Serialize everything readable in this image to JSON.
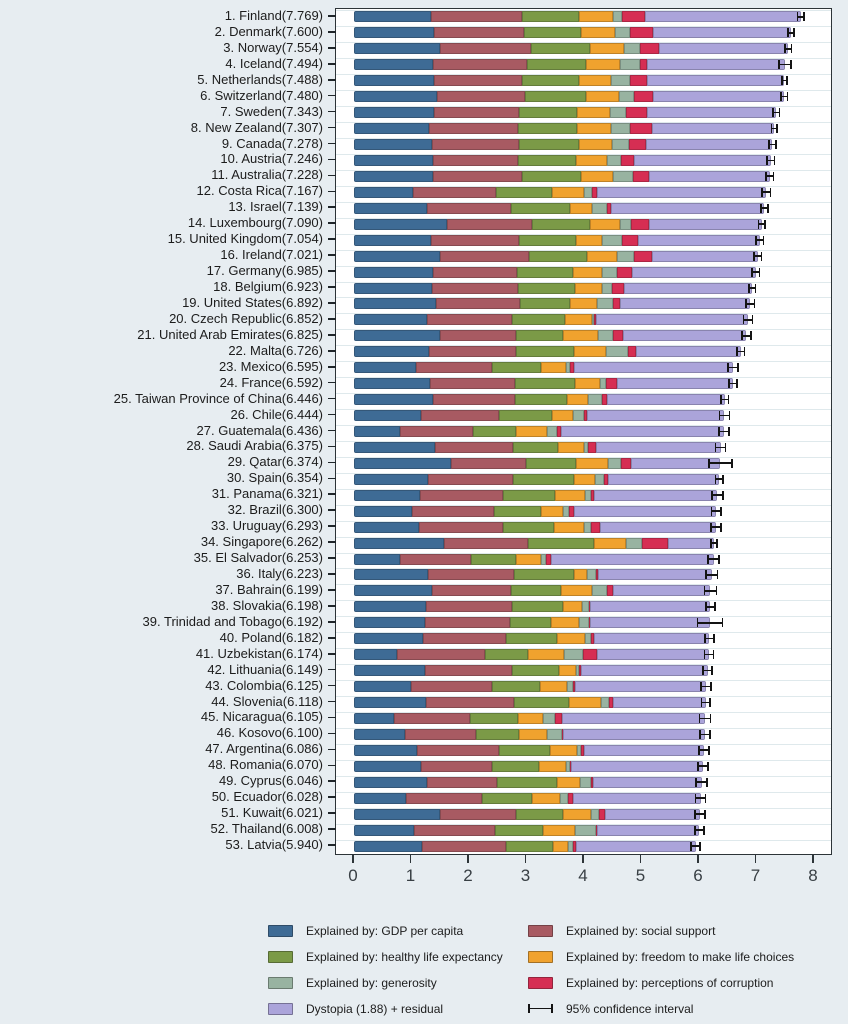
{
  "chart_data": {
    "type": "bar",
    "orientation": "horizontal",
    "stacked": true,
    "title": "",
    "xlabel": "",
    "ylabel": "",
    "x_ticks": [
      "0",
      "1",
      "2",
      "3",
      "4",
      "5",
      "6",
      "7",
      "8"
    ],
    "xlim": [
      0,
      8.3
    ],
    "grid": true,
    "legend_position": "bottom",
    "label_format": "{rank}. {name}({score})",
    "component_keys": [
      "gdp",
      "social",
      "health",
      "freedom",
      "generosity",
      "corruption"
    ],
    "colors": {
      "gdp": "#3e6b95",
      "social": "#a85a62",
      "health": "#7b9a47",
      "freedom": "#f0a22e",
      "generosity": "#98b3a1",
      "corruption": "#d62e53",
      "dystopia": "#aba4da",
      "ci": "#141414",
      "page_bg": "#e7edf1",
      "plot_bg": "#ffffff",
      "gridline": "#dfe9ec",
      "axis": "#2d3438"
    },
    "legend": [
      {
        "key": "gdp",
        "label": "Explained by: GDP per capita"
      },
      {
        "key": "social",
        "label": "Explained by: social support"
      },
      {
        "key": "health",
        "label": "Explained by: healthy life expectancy"
      },
      {
        "key": "freedom",
        "label": "Explained by: freedom to make life choices"
      },
      {
        "key": "generosity",
        "label": "Explained by: generosity"
      },
      {
        "key": "corruption",
        "label": "Explained by: perceptions of corruption"
      },
      {
        "key": "dystopia",
        "label": "Dystopia (1.88) + residual"
      },
      {
        "key": "ci",
        "label": "95% confidence interval"
      }
    ],
    "countries": [
      {
        "rank": 1,
        "name": "Finland",
        "score": "7.769",
        "components": [
          1.34,
          1.587,
          0.986,
          0.596,
          0.153,
          0.393
        ],
        "ci": 0.07
      },
      {
        "rank": 2,
        "name": "Denmark",
        "score": "7.600",
        "components": [
          1.383,
          1.573,
          0.996,
          0.592,
          0.252,
          0.41
        ],
        "ci": 0.07
      },
      {
        "rank": 3,
        "name": "Norway",
        "score": "7.554",
        "components": [
          1.488,
          1.582,
          1.028,
          0.603,
          0.271,
          0.341
        ],
        "ci": 0.07
      },
      {
        "rank": 4,
        "name": "Iceland",
        "score": "7.494",
        "components": [
          1.38,
          1.624,
          1.026,
          0.591,
          0.354,
          0.118
        ],
        "ci": 0.12
      },
      {
        "rank": 5,
        "name": "Netherlands",
        "score": "7.488",
        "components": [
          1.396,
          1.522,
          0.999,
          0.557,
          0.322,
          0.298
        ],
        "ci": 0.06
      },
      {
        "rank": 6,
        "name": "Switzerland",
        "score": "7.480",
        "components": [
          1.452,
          1.526,
          1.052,
          0.572,
          0.263,
          0.343
        ],
        "ci": 0.07
      },
      {
        "rank": 7,
        "name": "Sweden",
        "score": "7.343",
        "components": [
          1.387,
          1.487,
          1.009,
          0.574,
          0.267,
          0.373
        ],
        "ci": 0.07
      },
      {
        "rank": 8,
        "name": "New Zealand",
        "score": "7.307",
        "components": [
          1.303,
          1.557,
          1.026,
          0.585,
          0.33,
          0.38
        ],
        "ci": 0.06
      },
      {
        "rank": 9,
        "name": "Canada",
        "score": "7.278",
        "components": [
          1.365,
          1.505,
          1.039,
          0.584,
          0.285,
          0.308
        ],
        "ci": 0.07
      },
      {
        "rank": 10,
        "name": "Austria",
        "score": "7.246",
        "components": [
          1.376,
          1.475,
          1.016,
          0.532,
          0.244,
          0.226
        ],
        "ci": 0.08
      },
      {
        "rank": 11,
        "name": "Australia",
        "score": "7.228",
        "components": [
          1.372,
          1.548,
          1.036,
          0.557,
          0.332,
          0.29
        ],
        "ci": 0.08
      },
      {
        "rank": 12,
        "name": "Costa Rica",
        "score": "7.167",
        "components": [
          1.034,
          1.441,
          0.963,
          0.558,
          0.144,
          0.093
        ],
        "ci": 0.09
      },
      {
        "rank": 13,
        "name": "Israel",
        "score": "7.139",
        "components": [
          1.276,
          1.455,
          1.029,
          0.371,
          0.261,
          0.082
        ],
        "ci": 0.07
      },
      {
        "rank": 14,
        "name": "Luxembourg",
        "score": "7.090",
        "components": [
          1.609,
          1.479,
          1.012,
          0.526,
          0.194,
          0.316
        ],
        "ci": 0.07
      },
      {
        "rank": 15,
        "name": "United Kingdom",
        "score": "7.054",
        "components": [
          1.333,
          1.538,
          0.996,
          0.45,
          0.348,
          0.278
        ],
        "ci": 0.08
      },
      {
        "rank": 16,
        "name": "Ireland",
        "score": "7.021",
        "components": [
          1.499,
          1.553,
          0.999,
          0.516,
          0.298,
          0.31
        ],
        "ci": 0.08
      },
      {
        "rank": 17,
        "name": "Germany",
        "score": "6.985",
        "components": [
          1.373,
          1.454,
          0.987,
          0.495,
          0.261,
          0.265
        ],
        "ci": 0.08
      },
      {
        "rank": 18,
        "name": "Belgium",
        "score": "6.923",
        "components": [
          1.356,
          1.504,
          0.986,
          0.473,
          0.16,
          0.21
        ],
        "ci": 0.07
      },
      {
        "rank": 19,
        "name": "United States",
        "score": "6.892",
        "components": [
          1.433,
          1.457,
          0.874,
          0.454,
          0.28,
          0.128
        ],
        "ci": 0.09
      },
      {
        "rank": 20,
        "name": "Czech Republic",
        "score": "6.852",
        "components": [
          1.269,
          1.487,
          0.92,
          0.457,
          0.046,
          0.036
        ],
        "ci": 0.09
      },
      {
        "rank": 21,
        "name": "United Arab Emirates",
        "score": "6.825",
        "components": [
          1.503,
          1.31,
          0.825,
          0.598,
          0.262,
          0.182
        ],
        "ci": 0.09
      },
      {
        "rank": 22,
        "name": "Malta",
        "score": "6.726",
        "components": [
          1.3,
          1.52,
          0.999,
          0.564,
          0.375,
          0.151
        ],
        "ci": 0.08
      },
      {
        "rank": 23,
        "name": "Mexico",
        "score": "6.595",
        "components": [
          1.07,
          1.323,
          0.861,
          0.433,
          0.074,
          0.073
        ],
        "ci": 0.1
      },
      {
        "rank": 24,
        "name": "France",
        "score": "6.592",
        "components": [
          1.324,
          1.472,
          1.045,
          0.436,
          0.111,
          0.183
        ],
        "ci": 0.08
      },
      {
        "rank": 25,
        "name": "Taiwan Province of China",
        "score": "6.446",
        "components": [
          1.368,
          1.43,
          0.914,
          0.351,
          0.242,
          0.097
        ],
        "ci": 0.08
      },
      {
        "rank": 26,
        "name": "Chile",
        "score": "6.444",
        "components": [
          1.159,
          1.369,
          0.92,
          0.357,
          0.187,
          0.056
        ],
        "ci": 0.1
      },
      {
        "rank": 27,
        "name": "Guatemala",
        "score": "6.436",
        "components": [
          0.8,
          1.269,
          0.746,
          0.535,
          0.175,
          0.078
        ],
        "ci": 0.1
      },
      {
        "rank": 28,
        "name": "Saudi Arabia",
        "score": "6.375",
        "components": [
          1.403,
          1.357,
          0.795,
          0.439,
          0.08,
          0.132
        ],
        "ci": 0.1
      },
      {
        "rank": 29,
        "name": "Qatar",
        "score": "6.374",
        "components": [
          1.684,
          1.313,
          0.871,
          0.555,
          0.22,
          0.167
        ],
        "ci": 0.21
      },
      {
        "rank": 30,
        "name": "Spain",
        "score": "6.354",
        "components": [
          1.286,
          1.484,
          1.062,
          0.362,
          0.153,
          0.079
        ],
        "ci": 0.08
      },
      {
        "rank": 31,
        "name": "Panama",
        "score": "6.321",
        "components": [
          1.149,
          1.442,
          0.91,
          0.516,
          0.109,
          0.054
        ],
        "ci": 0.11
      },
      {
        "rank": 32,
        "name": "Brazil",
        "score": "6.300",
        "components": [
          1.004,
          1.439,
          0.802,
          0.39,
          0.099,
          0.086
        ],
        "ci": 0.1
      },
      {
        "rank": 33,
        "name": "Uruguay",
        "score": "6.293",
        "components": [
          1.124,
          1.465,
          0.891,
          0.523,
          0.127,
          0.15
        ],
        "ci": 0.1
      },
      {
        "rank": 34,
        "name": "Singapore",
        "score": "6.262",
        "components": [
          1.572,
          1.463,
          1.141,
          0.556,
          0.271,
          0.453
        ],
        "ci": 0.07
      },
      {
        "rank": 35,
        "name": "El Salvador",
        "score": "6.253",
        "components": [
          0.794,
          1.242,
          0.789,
          0.43,
          0.093,
          0.074
        ],
        "ci": 0.11
      },
      {
        "rank": 36,
        "name": "Italy",
        "score": "6.223",
        "components": [
          1.294,
          1.488,
          1.039,
          0.231,
          0.158,
          0.03
        ],
        "ci": 0.11
      },
      {
        "rank": 37,
        "name": "Bahrain",
        "score": "6.199",
        "components": [
          1.362,
          1.368,
          0.871,
          0.536,
          0.255,
          0.11
        ],
        "ci": 0.12
      },
      {
        "rank": 38,
        "name": "Slovakia",
        "score": "6.198",
        "components": [
          1.246,
          1.504,
          0.881,
          0.334,
          0.121,
          0.014
        ],
        "ci": 0.09
      },
      {
        "rank": 39,
        "name": "Trinidad and Tobago",
        "score": "6.192",
        "components": [
          1.231,
          1.477,
          0.713,
          0.489,
          0.185,
          0.016
        ],
        "ci": 0.23
      },
      {
        "rank": 40,
        "name": "Poland",
        "score": "6.182",
        "components": [
          1.206,
          1.438,
          0.884,
          0.483,
          0.117,
          0.05
        ],
        "ci": 0.09
      },
      {
        "rank": 41,
        "name": "Uzbekistan",
        "score": "6.174",
        "components": [
          0.745,
          1.529,
          0.756,
          0.631,
          0.322,
          0.24
        ],
        "ci": 0.09
      },
      {
        "rank": 42,
        "name": "Lithuania",
        "score": "6.149",
        "components": [
          1.238,
          1.515,
          0.818,
          0.291,
          0.043,
          0.042
        ],
        "ci": 0.09
      },
      {
        "rank": 43,
        "name": "Colombia",
        "score": "6.125",
        "components": [
          0.985,
          1.41,
          0.841,
          0.47,
          0.099,
          0.034
        ],
        "ci": 0.1
      },
      {
        "rank": 44,
        "name": "Slovenia",
        "score": "6.118",
        "components": [
          1.258,
          1.523,
          0.953,
          0.564,
          0.144,
          0.057
        ],
        "ci": 0.09
      },
      {
        "rank": 45,
        "name": "Nicaragua",
        "score": "6.105",
        "components": [
          0.694,
          1.325,
          0.835,
          0.435,
          0.2,
          0.127
        ],
        "ci": 0.11
      },
      {
        "rank": 46,
        "name": "Kosovo",
        "score": "6.100",
        "components": [
          0.882,
          1.232,
          0.758,
          0.489,
          0.262,
          0.006
        ],
        "ci": 0.1
      },
      {
        "rank": 47,
        "name": "Argentina",
        "score": "6.086",
        "components": [
          1.092,
          1.432,
          0.881,
          0.471,
          0.066,
          0.05
        ],
        "ci": 0.1
      },
      {
        "rank": 48,
        "name": "Romania",
        "score": "6.070",
        "components": [
          1.162,
          1.232,
          0.825,
          0.462,
          0.083,
          0.005
        ],
        "ci": 0.1
      },
      {
        "rank": 49,
        "name": "Cyprus",
        "score": "6.046",
        "components": [
          1.263,
          1.223,
          1.042,
          0.406,
          0.19,
          0.041
        ],
        "ci": 0.11
      },
      {
        "rank": 50,
        "name": "Ecuador",
        "score": "6.028",
        "components": [
          0.912,
          1.312,
          0.868,
          0.498,
          0.126,
          0.087
        ],
        "ci": 0.1
      },
      {
        "rank": 51,
        "name": "Kuwait",
        "score": "6.021",
        "components": [
          1.5,
          1.319,
          0.808,
          0.493,
          0.142,
          0.097
        ],
        "ci": 0.1
      },
      {
        "rank": 52,
        "name": "Thailand",
        "score": "6.008",
        "components": [
          1.05,
          1.409,
          0.828,
          0.557,
          0.359,
          0.028
        ],
        "ci": 0.09
      },
      {
        "rank": 53,
        "name": "Latvia",
        "score": "5.940",
        "components": [
          1.187,
          1.465,
          0.812,
          0.264,
          0.075,
          0.064
        ],
        "ci": 0.09
      }
    ]
  }
}
